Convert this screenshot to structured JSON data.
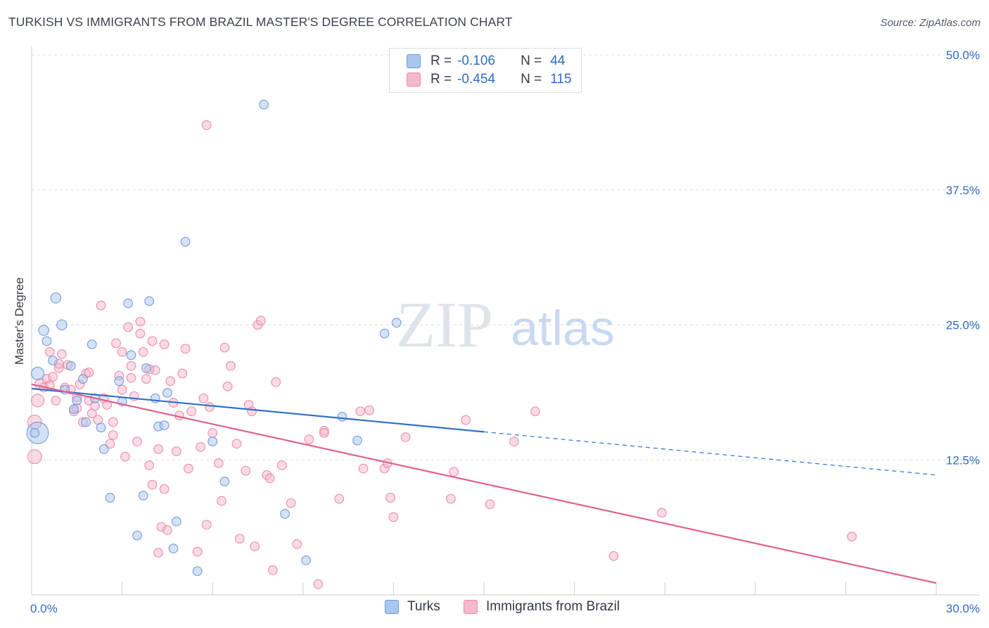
{
  "header": {
    "title": "TURKISH VS IMMIGRANTS FROM BRAZIL MASTER'S DEGREE CORRELATION CHART",
    "source": "Source: ZipAtlas.com"
  },
  "watermark": {
    "part1": "ZIP",
    "part2": "atlas"
  },
  "legend_top": {
    "rows": [
      {
        "r_label": "R =",
        "r_value": "-0.106",
        "n_label": "N =",
        "n_value": "44"
      },
      {
        "r_label": "R =",
        "r_value": "-0.454",
        "n_label": "N =",
        "n_value": "115"
      }
    ]
  },
  "legend_bottom": {
    "items": [
      "Turks",
      "Immigrants from Brazil"
    ]
  },
  "colors": {
    "blue_fill": "#a9c6ee",
    "blue_stroke": "#6f9ad8",
    "blue_line": "#2f6fcf",
    "pink_fill": "#f5b8cc",
    "pink_stroke": "#e98aaa",
    "pink_line": "#e0618e",
    "axis_text": "#2f6cc4",
    "grid": "#d9dde3"
  },
  "chart_data": {
    "type": "scatter",
    "title": "TURKISH VS IMMIGRANTS FROM BRAZIL MASTER'S DEGREE CORRELATION CHART",
    "xlabel": "",
    "ylabel": "Master's Degree",
    "xlim": [
      0,
      30
    ],
    "ylim": [
      0,
      50
    ],
    "x_tick_labels": [
      "0.0%",
      "30.0%"
    ],
    "y_ticks": [
      12.5,
      25.0,
      37.5,
      50.0
    ],
    "y_tick_labels": [
      "12.5%",
      "25.0%",
      "37.5%",
      "50.0%"
    ],
    "grid": "horizontal dashed",
    "legend_position": "top-center",
    "series": [
      {
        "name": "Turks",
        "r": -0.106,
        "n": 44,
        "trend": {
          "x0": 0,
          "y0": 19.1,
          "x1": 30,
          "y1": 11.1,
          "solid_until": 15
        },
        "points": [
          [
            0.2,
            15.0,
            1.7
          ],
          [
            0.2,
            20.5,
            1.0
          ],
          [
            0.4,
            24.5,
            0.8
          ],
          [
            0.5,
            23.5,
            0.7
          ],
          [
            0.7,
            21.7,
            0.7
          ],
          [
            0.8,
            27.5,
            0.8
          ],
          [
            1.0,
            25.0,
            0.8
          ],
          [
            1.1,
            19.0,
            0.7
          ],
          [
            1.3,
            21.2,
            0.7
          ],
          [
            1.4,
            17.2,
            0.7
          ],
          [
            1.5,
            18.0,
            0.7
          ],
          [
            1.7,
            20.0,
            0.7
          ],
          [
            1.8,
            16.0,
            0.7
          ],
          [
            2.0,
            23.2,
            0.7
          ],
          [
            2.1,
            18.2,
            0.7
          ],
          [
            2.3,
            15.5,
            0.7
          ],
          [
            2.4,
            13.5,
            0.7
          ],
          [
            2.6,
            9.0,
            0.7
          ],
          [
            2.9,
            19.8,
            0.7
          ],
          [
            3.0,
            17.9,
            0.7
          ],
          [
            3.2,
            27.0,
            0.7
          ],
          [
            3.3,
            22.2,
            0.7
          ],
          [
            3.5,
            5.5,
            0.7
          ],
          [
            3.7,
            9.2,
            0.7
          ],
          [
            3.8,
            21.0,
            0.7
          ],
          [
            3.9,
            27.2,
            0.7
          ],
          [
            4.1,
            18.2,
            0.7
          ],
          [
            4.2,
            15.6,
            0.7
          ],
          [
            4.4,
            15.7,
            0.7
          ],
          [
            4.5,
            18.7,
            0.7
          ],
          [
            4.8,
            6.8,
            0.7
          ],
          [
            4.7,
            4.3,
            0.7
          ],
          [
            5.1,
            32.7,
            0.7
          ],
          [
            5.5,
            2.2,
            0.7
          ],
          [
            6.0,
            14.2,
            0.7
          ],
          [
            6.4,
            10.5,
            0.7
          ],
          [
            7.7,
            45.4,
            0.7
          ],
          [
            8.4,
            7.5,
            0.7
          ],
          [
            9.1,
            3.2,
            0.7
          ],
          [
            10.3,
            16.5,
            0.7
          ],
          [
            10.8,
            14.3,
            0.7
          ],
          [
            11.7,
            24.2,
            0.7
          ],
          [
            12.1,
            25.2,
            0.7
          ],
          [
            0.1,
            15.0,
            0.7
          ]
        ]
      },
      {
        "name": "Immigrants from Brazil",
        "r": -0.454,
        "n": 115,
        "trend": {
          "x0": 0,
          "y0": 19.5,
          "x1": 30,
          "y1": 1.1
        },
        "points": [
          [
            0.1,
            16.0,
            1.1
          ],
          [
            0.1,
            12.8,
            1.1
          ],
          [
            0.2,
            18.0,
            1.0
          ],
          [
            0.3,
            19.5,
            0.9
          ],
          [
            0.4,
            19.2,
            0.7
          ],
          [
            0.5,
            20.0,
            0.7
          ],
          [
            0.6,
            22.5,
            0.7
          ],
          [
            0.7,
            20.2,
            0.7
          ],
          [
            0.8,
            18.0,
            0.7
          ],
          [
            0.9,
            21.0,
            0.7
          ],
          [
            1.0,
            22.3,
            0.7
          ],
          [
            1.1,
            19.2,
            0.7
          ],
          [
            1.2,
            21.3,
            0.7
          ],
          [
            1.3,
            19.0,
            0.7
          ],
          [
            1.4,
            17.0,
            0.7
          ],
          [
            1.5,
            18.3,
            0.7
          ],
          [
            1.6,
            19.5,
            0.7
          ],
          [
            1.7,
            16.0,
            0.7
          ],
          [
            1.8,
            20.5,
            0.7
          ],
          [
            1.9,
            18.0,
            0.7
          ],
          [
            2.0,
            16.8,
            0.7
          ],
          [
            2.1,
            17.5,
            0.7
          ],
          [
            2.2,
            16.2,
            0.7
          ],
          [
            2.3,
            26.8,
            0.7
          ],
          [
            2.4,
            18.2,
            0.7
          ],
          [
            2.5,
            17.6,
            0.7
          ],
          [
            2.6,
            14.0,
            0.7
          ],
          [
            2.7,
            14.8,
            0.7
          ],
          [
            2.8,
            23.3,
            0.7
          ],
          [
            2.9,
            20.3,
            0.7
          ],
          [
            3.0,
            22.5,
            0.7
          ],
          [
            3.0,
            19.0,
            0.7
          ],
          [
            3.1,
            12.8,
            0.7
          ],
          [
            3.2,
            24.8,
            0.7
          ],
          [
            3.3,
            21.2,
            0.7
          ],
          [
            3.4,
            18.4,
            0.7
          ],
          [
            3.5,
            14.2,
            0.7
          ],
          [
            3.6,
            24.2,
            0.7
          ],
          [
            3.6,
            25.3,
            0.7
          ],
          [
            3.7,
            22.5,
            0.7
          ],
          [
            3.8,
            20.0,
            0.7
          ],
          [
            3.9,
            12.0,
            0.7
          ],
          [
            4.0,
            23.5,
            0.7
          ],
          [
            4.0,
            10.2,
            0.7
          ],
          [
            4.1,
            20.8,
            0.7
          ],
          [
            4.2,
            13.5,
            0.7
          ],
          [
            4.2,
            3.9,
            0.7
          ],
          [
            4.3,
            6.3,
            0.7
          ],
          [
            4.4,
            23.2,
            0.7
          ],
          [
            4.5,
            6.0,
            0.7
          ],
          [
            4.6,
            19.8,
            0.7
          ],
          [
            4.7,
            17.8,
            0.7
          ],
          [
            4.8,
            13.3,
            0.7
          ],
          [
            4.9,
            16.6,
            0.7
          ],
          [
            5.0,
            20.5,
            0.7
          ],
          [
            5.1,
            22.8,
            0.7
          ],
          [
            5.2,
            11.7,
            0.7
          ],
          [
            5.3,
            17.0,
            0.7
          ],
          [
            5.5,
            4.0,
            0.7
          ],
          [
            5.6,
            13.7,
            0.7
          ],
          [
            5.7,
            18.2,
            0.7
          ],
          [
            5.8,
            6.5,
            0.7
          ],
          [
            5.9,
            17.4,
            0.7
          ],
          [
            6.0,
            15.0,
            0.7
          ],
          [
            6.2,
            12.2,
            0.7
          ],
          [
            6.3,
            8.7,
            0.7
          ],
          [
            6.4,
            22.9,
            0.7
          ],
          [
            6.5,
            19.3,
            0.7
          ],
          [
            6.6,
            21.2,
            0.7
          ],
          [
            6.8,
            14.0,
            0.7
          ],
          [
            6.9,
            5.2,
            0.7
          ],
          [
            7.1,
            11.5,
            0.7
          ],
          [
            7.2,
            17.6,
            0.7
          ],
          [
            7.3,
            17.0,
            0.7
          ],
          [
            7.4,
            4.5,
            0.7
          ],
          [
            7.5,
            25.0,
            0.7
          ],
          [
            7.6,
            25.4,
            0.7
          ],
          [
            7.8,
            11.1,
            0.7
          ],
          [
            7.9,
            10.8,
            0.7
          ],
          [
            8.0,
            2.3,
            0.7
          ],
          [
            8.1,
            19.7,
            0.7
          ],
          [
            8.3,
            12.0,
            0.7
          ],
          [
            8.6,
            8.5,
            0.7
          ],
          [
            8.8,
            4.7,
            0.7
          ],
          [
            9.2,
            14.4,
            0.7
          ],
          [
            9.5,
            1.0,
            0.7
          ],
          [
            9.7,
            15.2,
            0.7
          ],
          [
            9.7,
            15.0,
            0.7
          ],
          [
            10.2,
            8.9,
            0.7
          ],
          [
            10.9,
            17.0,
            0.7
          ],
          [
            11.0,
            11.7,
            0.7
          ],
          [
            11.2,
            17.1,
            0.7
          ],
          [
            11.7,
            11.7,
            0.7
          ],
          [
            11.8,
            12.2,
            0.7
          ],
          [
            11.9,
            9.0,
            0.7
          ],
          [
            12.0,
            7.2,
            0.7
          ],
          [
            12.4,
            14.6,
            0.7
          ],
          [
            13.9,
            8.9,
            0.7
          ],
          [
            14.0,
            11.4,
            0.7
          ],
          [
            14.4,
            16.2,
            0.7
          ],
          [
            15.2,
            8.4,
            0.7
          ],
          [
            16.0,
            14.2,
            0.7
          ],
          [
            16.7,
            17.0,
            0.7
          ],
          [
            19.3,
            3.6,
            0.7
          ],
          [
            20.9,
            7.6,
            0.7
          ],
          [
            27.2,
            5.4,
            0.7
          ],
          [
            5.8,
            43.5,
            0.7
          ],
          [
            1.5,
            17.3,
            0.7
          ],
          [
            2.7,
            16.0,
            0.7
          ],
          [
            0.6,
            19.4,
            0.7
          ],
          [
            3.3,
            20.1,
            0.7
          ],
          [
            4.4,
            9.8,
            0.7
          ],
          [
            1.9,
            20.6,
            0.7
          ],
          [
            3.9,
            20.9,
            0.7
          ],
          [
            0.9,
            21.4,
            0.7
          ]
        ]
      }
    ]
  }
}
